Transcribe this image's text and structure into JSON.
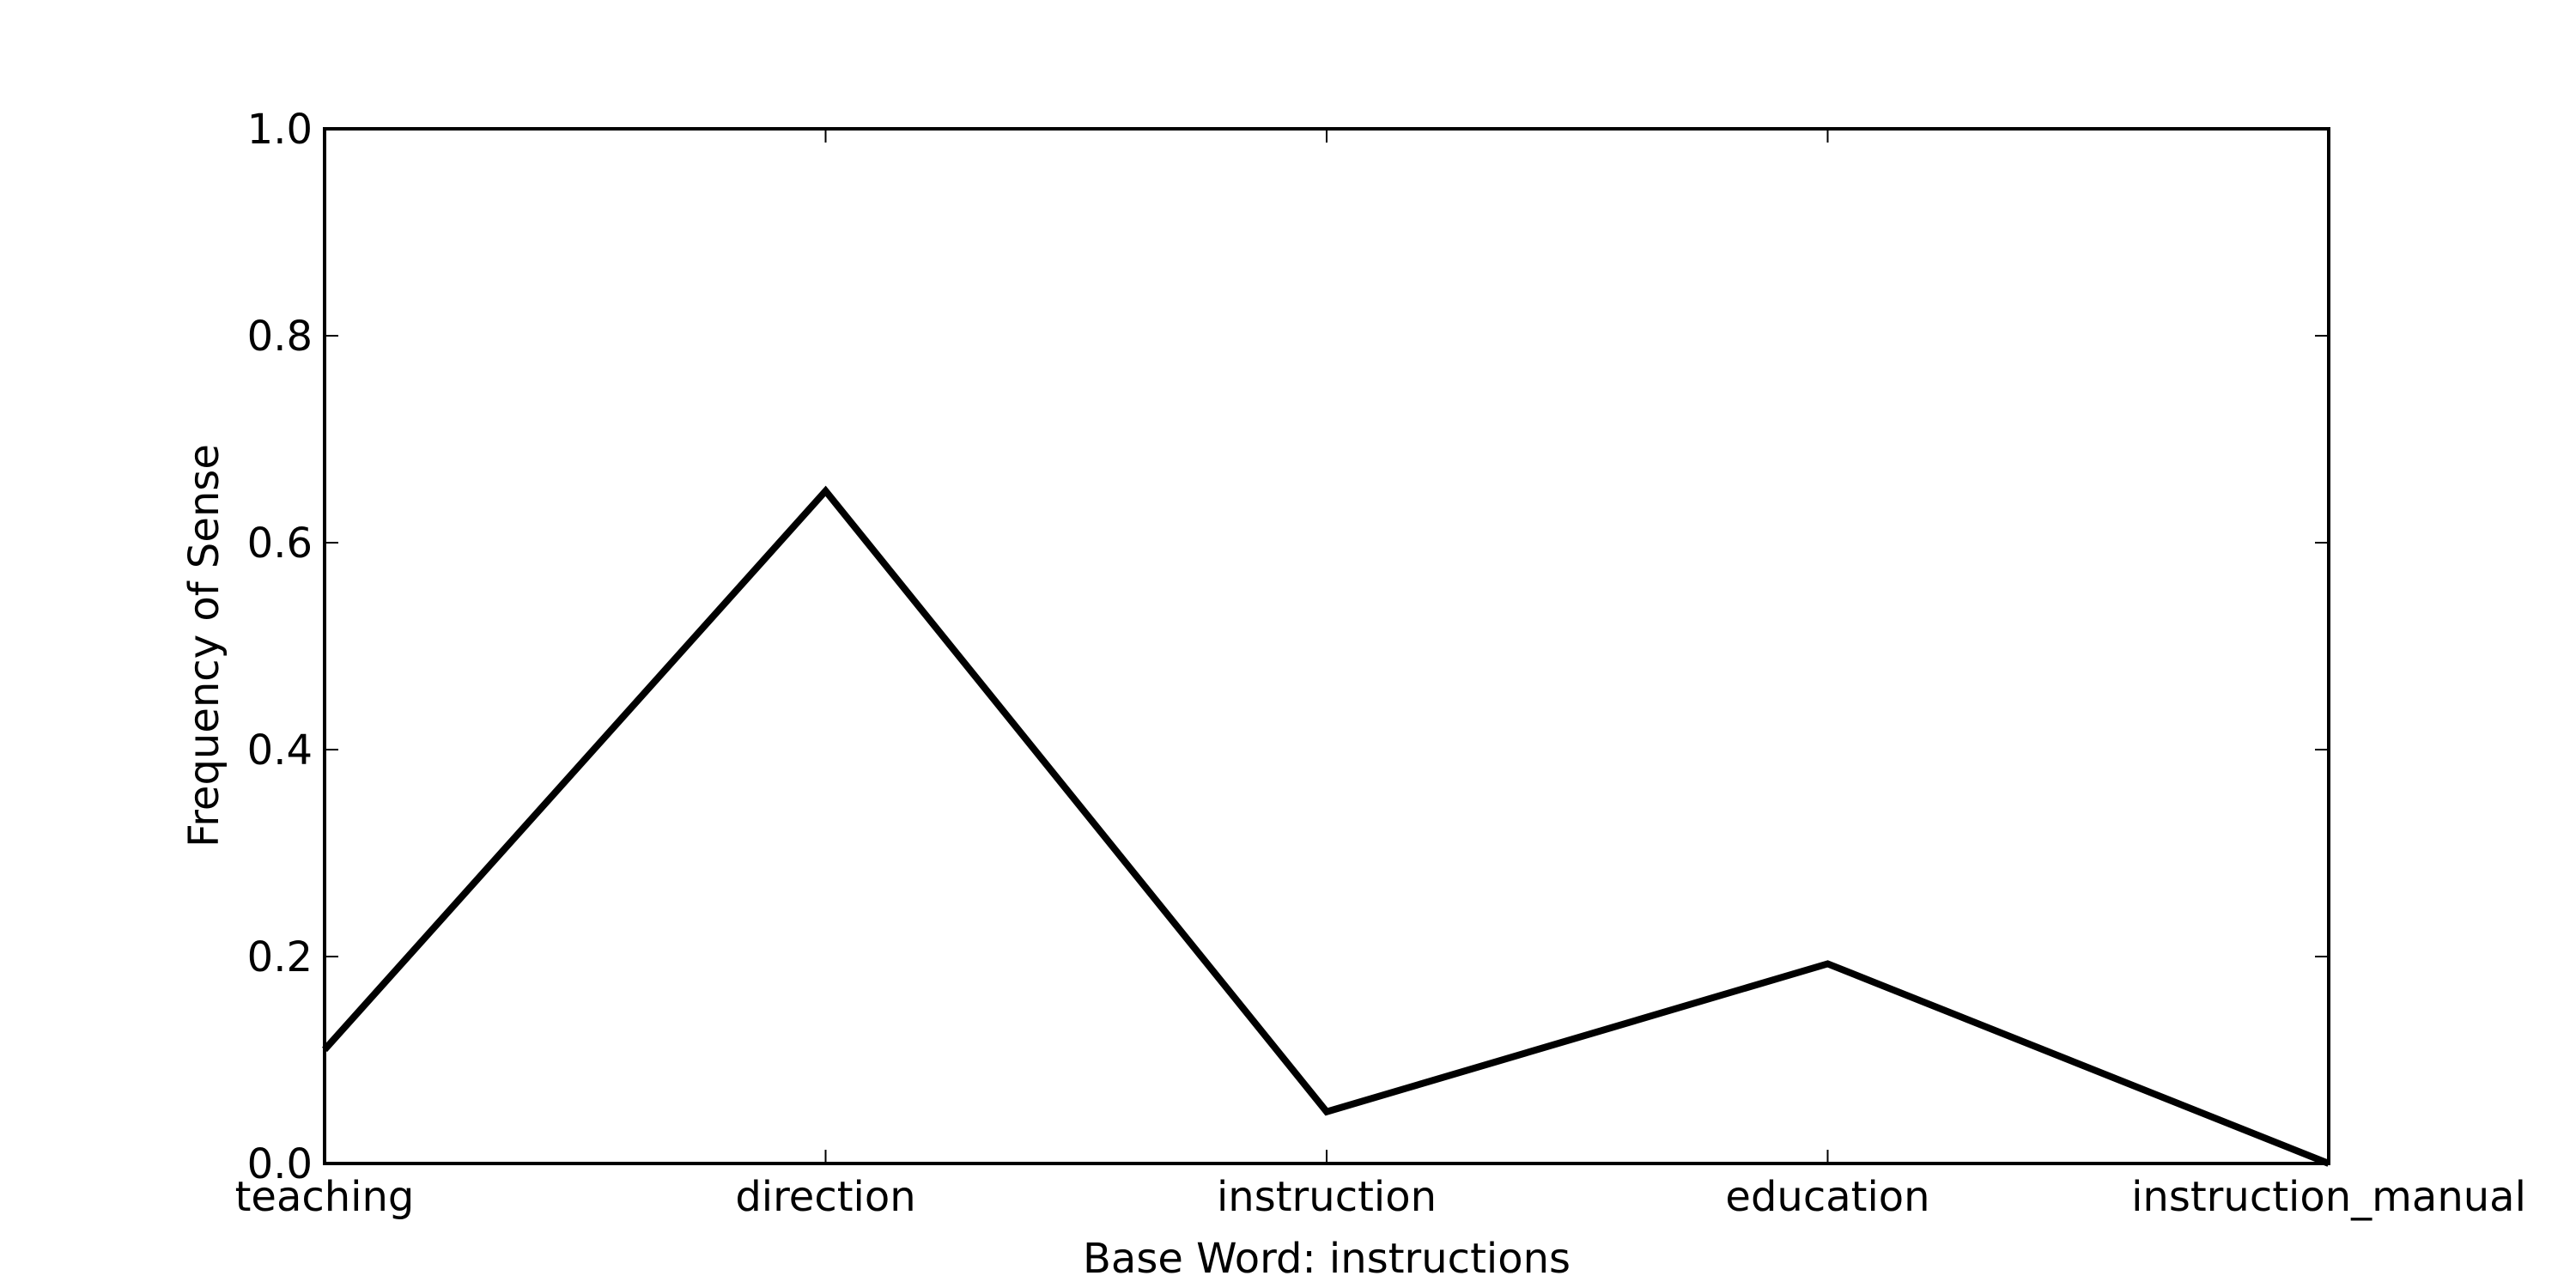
{
  "chart_data": {
    "type": "line",
    "title": "",
    "xlabel": "Base Word: instructions",
    "ylabel": "Frequency of Sense",
    "categories": [
      "teaching",
      "direction",
      "instruction",
      "education",
      "instruction_manual"
    ],
    "series": [
      {
        "values": [
          0.11,
          0.65,
          0.05,
          0.193,
          0.0
        ]
      }
    ],
    "ylim": [
      0.0,
      1.0
    ],
    "yticks": [
      "0.0",
      "0.2",
      "0.4",
      "0.6",
      "0.8",
      "1.0"
    ],
    "grid": false,
    "line_color": "#000000"
  }
}
